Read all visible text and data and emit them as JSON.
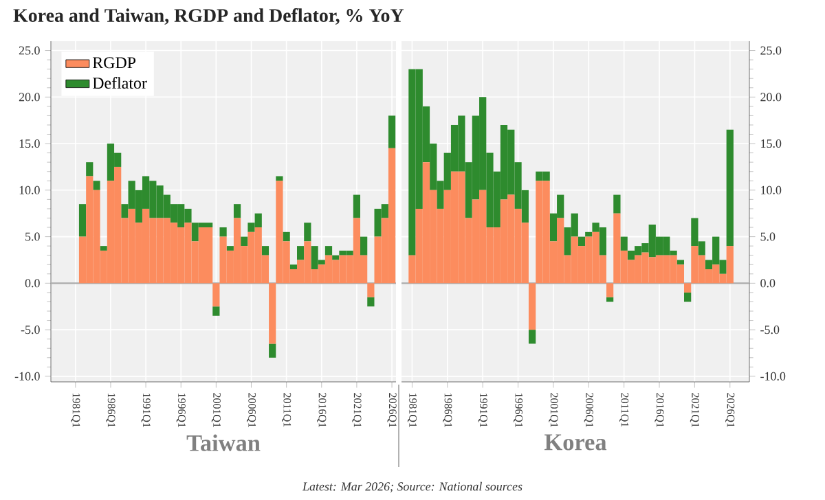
{
  "chart_data": [
    {
      "type": "bar",
      "stacked": true,
      "title": "Korea and Taiwan, RGDP and Deflator, % YoY",
      "xlabel": "Taiwan",
      "annotations": [
        "Latest: Mar 2026; Source: National sources"
      ],
      "x": [
        "1982",
        "1983",
        "1984",
        "1985",
        "1986",
        "1987",
        "1988",
        "1989",
        "1990",
        "1991",
        "1992",
        "1993",
        "1994",
        "1995",
        "1996",
        "1997",
        "1998",
        "1999",
        "2000",
        "2001",
        "2002",
        "2003",
        "2004",
        "2005",
        "2006",
        "2007",
        "2008",
        "2009",
        "2010",
        "2011",
        "2012",
        "2013",
        "2014",
        "2015",
        "2016",
        "2017",
        "2018",
        "2019",
        "2020",
        "2021",
        "2022",
        "2023",
        "2024",
        "2025",
        "2026"
      ],
      "series": [
        {
          "name": "RGDP",
          "color": "#fc8c5e",
          "values": [
            5,
            11.5,
            10,
            3.5,
            11,
            12.5,
            7,
            8,
            6.5,
            8,
            7,
            7,
            7,
            6.5,
            6,
            6.5,
            4.5,
            6,
            6,
            -2.5,
            5,
            3.5,
            7,
            4,
            5.5,
            6,
            3,
            -6.5,
            11,
            4.5,
            1.5,
            2.5,
            4.5,
            1.5,
            2,
            3,
            2.5,
            3,
            3,
            7,
            3,
            -1.5,
            5,
            7,
            14.5
          ]
        },
        {
          "name": "Deflator",
          "color": "#2e8b2e",
          "values": [
            3.5,
            1.5,
            1,
            0.5,
            4,
            1.5,
            1.5,
            3,
            3.5,
            3.5,
            4,
            3.5,
            2.5,
            2,
            2.5,
            1.5,
            2,
            0.5,
            0.5,
            -1,
            1,
            0.5,
            1.5,
            1,
            1,
            1.5,
            1,
            -1.5,
            0.5,
            1,
            0.5,
            1.5,
            2,
            2.5,
            0.5,
            1,
            0.5,
            0.5,
            0.5,
            2.5,
            2,
            -1,
            3,
            1.5,
            3.5
          ]
        }
      ],
      "xlim": [
        "1977-07",
        "2026-08"
      ],
      "ylim": [
        -10.6,
        26
      ],
      "xticks": [
        {
          "value": "1981-01",
          "label": "1981Q1"
        },
        {
          "value": "1986-01",
          "label": "1986Q1"
        },
        {
          "value": "1991-01",
          "label": "1991Q1"
        },
        {
          "value": "1996-01",
          "label": "1996Q1"
        },
        {
          "value": "2001-01",
          "label": "2001Q1"
        },
        {
          "value": "2006-01",
          "label": "2006Q1"
        },
        {
          "value": "2011-01",
          "label": "2011Q1"
        },
        {
          "value": "2016-01",
          "label": "2016Q1"
        },
        {
          "value": "2021-01",
          "label": "2021Q1"
        },
        {
          "value": "2026-01",
          "label": "2026Q1"
        }
      ],
      "yticks": [
        {
          "value": -10,
          "label": "-10.0"
        },
        {
          "value": -5,
          "label": "-5.0"
        },
        {
          "value": 0,
          "label": "0.0"
        },
        {
          "value": 5,
          "label": "5.0"
        },
        {
          "value": 10,
          "label": "10.0"
        },
        {
          "value": 15,
          "label": "15.0"
        },
        {
          "value": 20,
          "label": "20.0"
        },
        {
          "value": 25,
          "label": "25.0"
        }
      ],
      "ref_lines": [
        {
          "axis": "y",
          "value": 0,
          "color": "#aaaaaa"
        }
      ],
      "grid": true,
      "legend": "top left"
    },
    {
      "type": "bar",
      "stacked": true,
      "xlabel": "Korea",
      "x": [
        "1981",
        "1982",
        "1983",
        "1984",
        "1985",
        "1986",
        "1987",
        "1988",
        "1989",
        "1990",
        "1991",
        "1992",
        "1993",
        "1994",
        "1995",
        "1996",
        "1997",
        "1998",
        "1999",
        "2000",
        "2001",
        "2002",
        "2003",
        "2004",
        "2005",
        "2006",
        "2007",
        "2008",
        "2009",
        "2010",
        "2011",
        "2012",
        "2013",
        "2014",
        "2015",
        "2016",
        "2017",
        "2018",
        "2019",
        "2020",
        "2021",
        "2022",
        "2023",
        "2024",
        "2025",
        "2026"
      ],
      "series": [
        {
          "color": "#fc8c5e",
          "values": [
            3,
            8,
            13,
            10,
            8,
            10,
            12,
            12,
            7,
            9,
            10,
            6,
            6,
            9,
            9.5,
            8,
            6.5,
            -5,
            11,
            11,
            4.5,
            7,
            3,
            5,
            4,
            5,
            5.5,
            3,
            -1.5,
            7.5,
            3.5,
            2.5,
            3,
            3.3,
            2.8,
            3,
            3,
            3,
            2,
            -1,
            4,
            3,
            1.5,
            2,
            1,
            4
          ]
        },
        {
          "color": "#2e8b2e",
          "values": [
            20,
            15,
            6,
            5,
            3,
            4,
            5,
            6,
            6,
            9,
            10,
            8,
            6,
            8,
            7,
            5,
            3.5,
            -1.5,
            1,
            1,
            3,
            2.5,
            3,
            2.5,
            1,
            0.5,
            1,
            3,
            -0.5,
            2,
            1.5,
            1,
            1,
            1,
            3.5,
            2,
            2,
            0.5,
            0.5,
            -1,
            3,
            1.5,
            1,
            3,
            1.5,
            12.5
          ]
        }
      ],
      "xlim": [
        "1979-07",
        "2028-10"
      ],
      "ylim": [
        -10.6,
        26
      ],
      "xticks": [
        {
          "value": "1981-01",
          "label": "1981Q1"
        },
        {
          "value": "1986-01",
          "label": "1986Q1"
        },
        {
          "value": "1991-01",
          "label": "1991Q1"
        },
        {
          "value": "1996-01",
          "label": "1996Q1"
        },
        {
          "value": "2001-01",
          "label": "2001Q1"
        },
        {
          "value": "2006-01",
          "label": "2006Q1"
        },
        {
          "value": "2011-01",
          "label": "2011Q1"
        },
        {
          "value": "2016-01",
          "label": "2016Q1"
        },
        {
          "value": "2021-01",
          "label": "2021Q1"
        },
        {
          "value": "2026-01",
          "label": "2026Q1"
        }
      ],
      "yticks": [
        {
          "value": -10,
          "label": "-10.0"
        },
        {
          "value": -5,
          "label": "-5.0"
        },
        {
          "value": 0,
          "label": "0.0"
        },
        {
          "value": 5,
          "label": "5.0"
        },
        {
          "value": 10,
          "label": "10.0"
        },
        {
          "value": 15,
          "label": "15.0"
        },
        {
          "value": 20,
          "label": "20.0"
        },
        {
          "value": 25,
          "label": "25.0"
        }
      ],
      "ref_lines": [
        {
          "axis": "y",
          "value": 0,
          "color": "#aaaaaa"
        }
      ],
      "grid": true
    }
  ]
}
